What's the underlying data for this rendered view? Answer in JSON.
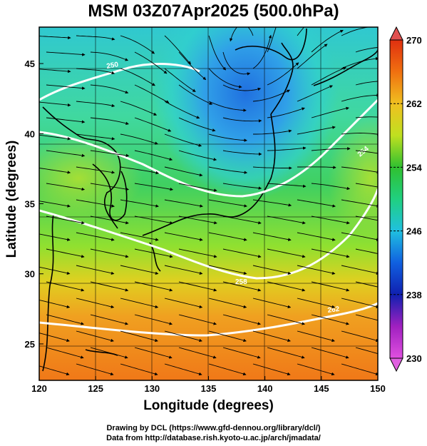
{
  "title": "MSM 03Z07Apr2025 (500.0hPa)",
  "x_axis": {
    "label": "Longitude (degrees)",
    "range": [
      120,
      150
    ],
    "ticks": [
      "120",
      "125",
      "130",
      "135",
      "140",
      "145",
      "150"
    ]
  },
  "y_axis": {
    "label": "Latitude  (degrees)",
    "range": [
      22.4,
      47.6
    ],
    "ticks": [
      "25",
      "30",
      "35",
      "40",
      "45"
    ]
  },
  "colorbar": {
    "range": [
      230,
      270
    ],
    "ticks": [
      "230",
      "238",
      "246",
      "254",
      "262",
      "270"
    ],
    "colors": [
      "#e050e0",
      "#a020c0",
      "#1020b0",
      "#1060e0",
      "#20c0e0",
      "#20d080",
      "#30c030",
      "#c0e020",
      "#f0c020",
      "#f07010",
      "#e03010"
    ]
  },
  "field_colors": {
    "cold_core": "#2080e0",
    "cool": "#30d0c0",
    "mid": "#40d060",
    "warm": "#c0e030",
    "hot": "#f08020"
  },
  "contours": [
    {
      "label": "250",
      "color": "#ffffff"
    },
    {
      "label": "254",
      "color": "#ffffff"
    },
    {
      "label": "258",
      "color": "#ffffff"
    },
    {
      "label": "262",
      "color": "#ffffff"
    }
  ],
  "credits": {
    "line1": "Drawing by DCL (https://www.gfd-dennou.org/library/dcl/)",
    "line2": "Data from http://database.rish.kyoto-u.ac.jp/arch/jmadata/"
  },
  "chart_data": {
    "type": "heatmap",
    "variable": "temperature with wind streamlines",
    "level": "500.0hPa",
    "colorbar_range": [
      230,
      270
    ],
    "cold_core": {
      "lon": 138,
      "lat": 45
    },
    "flow": "westerly"
  }
}
